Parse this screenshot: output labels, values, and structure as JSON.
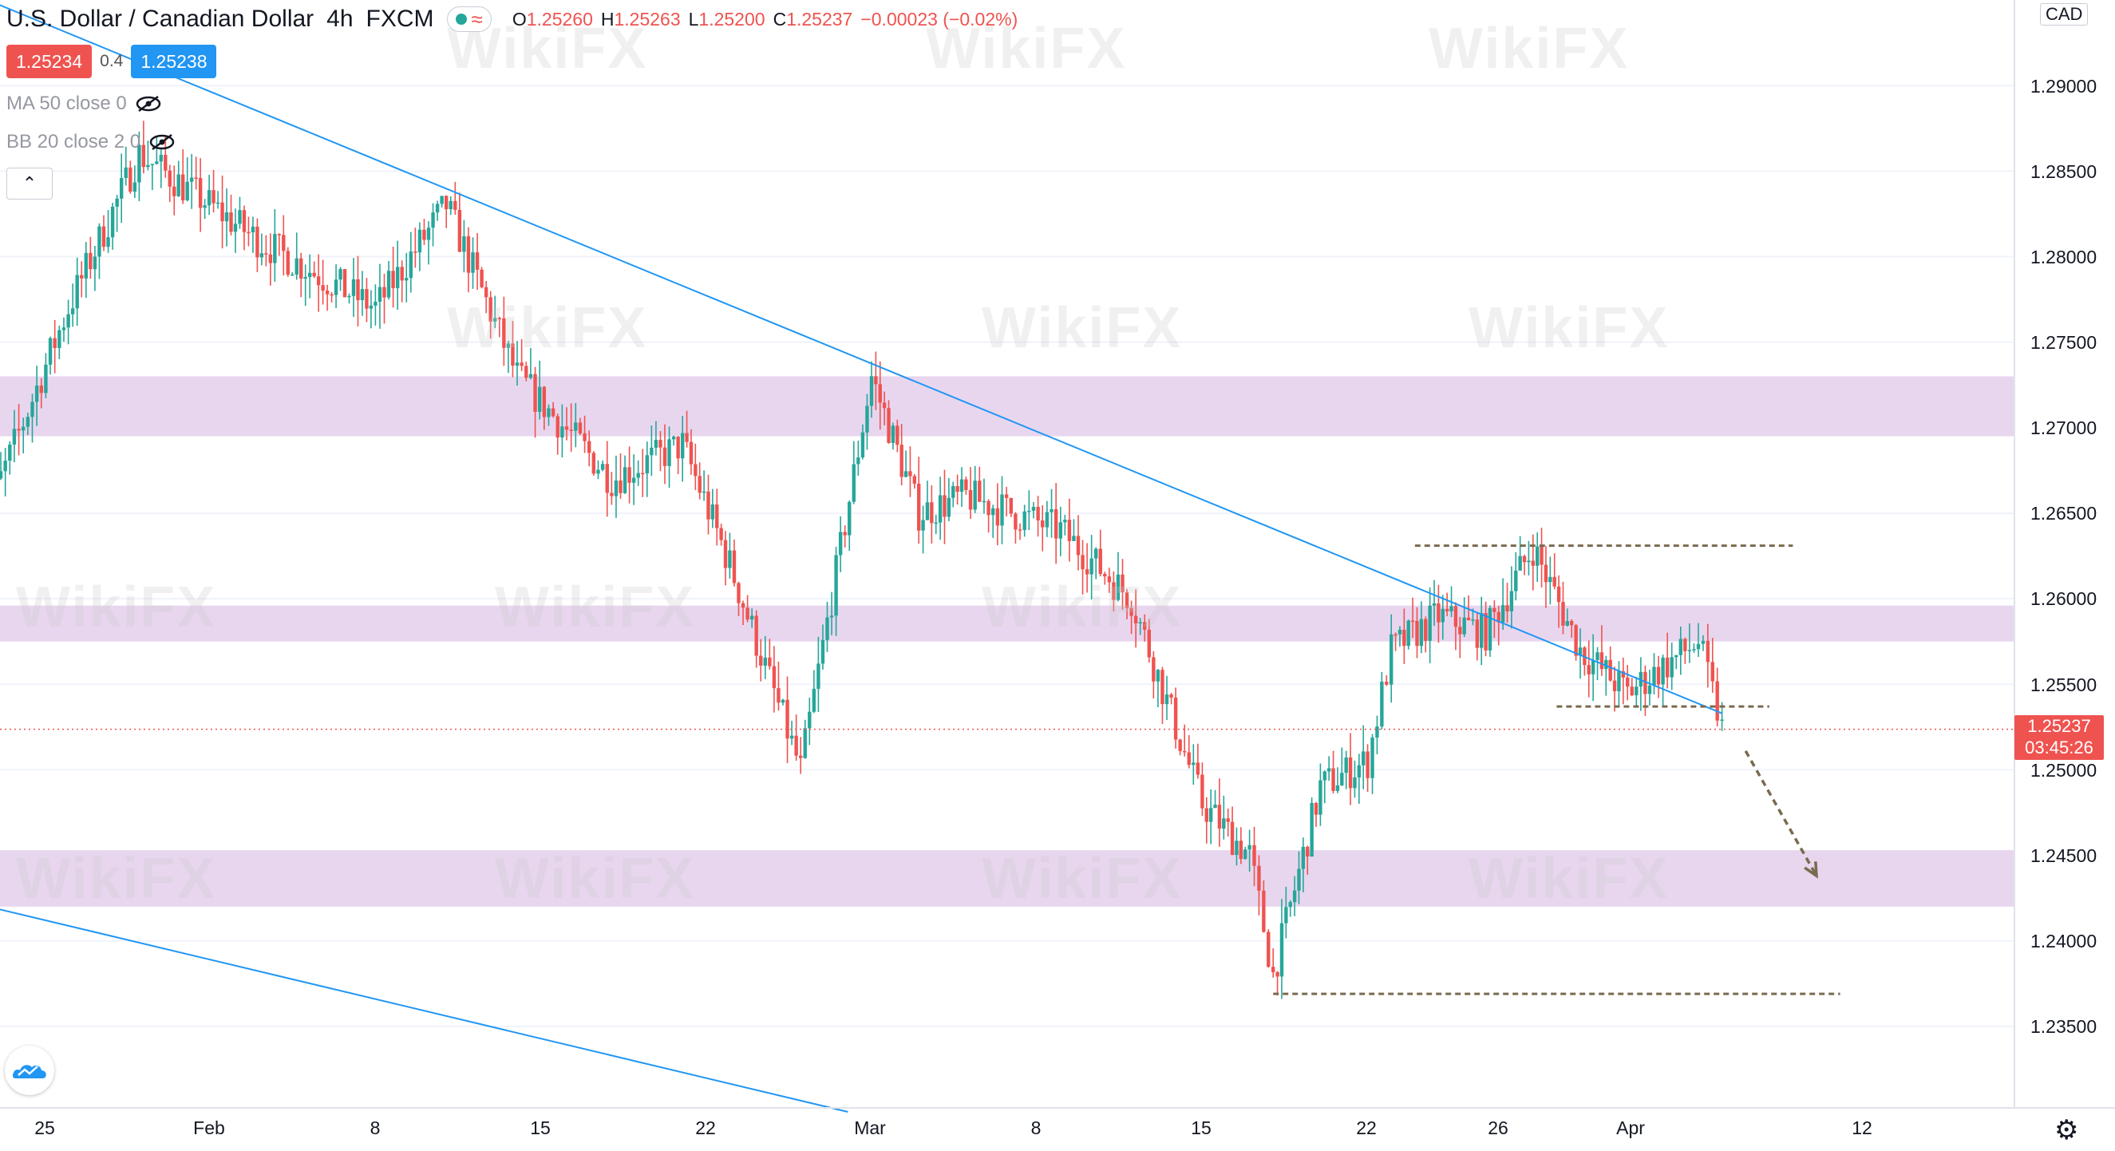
{
  "header": {
    "symbol_title": "U.S. Dollar / Canadian Dollar",
    "interval": "4h",
    "exchange": "FXCM",
    "status_icon": "market-open-dot",
    "ohlc": {
      "o_label": "O",
      "o": "1.25260",
      "h_label": "H",
      "h": "1.25263",
      "l_label": "L",
      "l": "1.25200",
      "c_label": "C",
      "c": "1.25237",
      "change": "−0.00023 (−0.02%)"
    }
  },
  "trade": {
    "sell_price": "1.25234",
    "spread": "0.4",
    "buy_price": "1.25238"
  },
  "indicators": [
    {
      "label": "MA 50 close 0"
    },
    {
      "label": "BB 20 close 2 0"
    }
  ],
  "price_axis": {
    "currency": "CAD",
    "ticks": [
      "1.29000",
      "1.28500",
      "1.28000",
      "1.27500",
      "1.27000",
      "1.26500",
      "1.26000",
      "1.25500",
      "1.25000",
      "1.24500",
      "1.24000",
      "1.23500"
    ],
    "current_price": "1.25237",
    "countdown": "03:45:26"
  },
  "time_axis": {
    "ticks": [
      "25",
      "Feb",
      "8",
      "15",
      "22",
      "Mar",
      "8",
      "15",
      "22",
      "26",
      "Apr",
      "12"
    ]
  },
  "watermark": "WikiFX",
  "colors": {
    "up": "#26a69a",
    "down": "#ef5350",
    "zone": "#e7d4ee",
    "trendline": "#2196f3",
    "dashed": "#7a6a4f"
  },
  "chart_data": {
    "type": "candlestick",
    "symbol": "USD/CAD",
    "ylim": [
      1.2305,
      1.295
    ],
    "zones": [
      [
        1.2695,
        1.273
      ],
      [
        1.2575,
        1.2596
      ],
      [
        1.242,
        1.2453
      ]
    ],
    "horizontal_levels": [
      {
        "y": 1.2631,
        "from": "2021-03-24",
        "to": "2021-04-09"
      },
      {
        "y": 1.2537,
        "from": "2021-03-30",
        "to": "2021-04-08"
      },
      {
        "y": 1.2369,
        "from": "2021-03-18",
        "to": "2021-04-11"
      }
    ],
    "trendlines": [
      {
        "from": [
          "2021-01-21",
          1.2959
        ],
        "to": [
          "2021-04-06",
          1.2533
        ]
      },
      {
        "from": [
          "2021-01-22",
          1.2422
        ],
        "to": [
          "2021-02-28",
          1.23
        ]
      }
    ],
    "projection_arrow": {
      "from": [
        "2021-04-07",
        1.2511
      ],
      "to": [
        "2021-04-10",
        1.2438
      ]
    },
    "anchors": [
      [
        "2021-01-22",
        1.263
      ],
      [
        "2021-01-26",
        1.277
      ],
      [
        "2021-01-29",
        1.286
      ],
      [
        "2021-02-03",
        1.281
      ],
      [
        "2021-02-08",
        1.277
      ],
      [
        "2021-02-11",
        1.283
      ],
      [
        "2021-02-14",
        1.273
      ],
      [
        "2021-02-18",
        1.267
      ],
      [
        "2021-02-21",
        1.269
      ],
      [
        "2021-02-23",
        1.262
      ],
      [
        "2021-02-26",
        1.25
      ],
      [
        "2021-03-01",
        1.273
      ],
      [
        "2021-03-03",
        1.265
      ],
      [
        "2021-03-05",
        1.266
      ],
      [
        "2021-03-09",
        1.264
      ],
      [
        "2021-03-12",
        1.26
      ],
      [
        "2021-03-15",
        1.248
      ],
      [
        "2021-03-17",
        1.245
      ],
      [
        "2021-03-18",
        1.238
      ],
      [
        "2021-03-20",
        1.249
      ],
      [
        "2021-03-22",
        1.2505
      ],
      [
        "2021-03-23",
        1.257
      ],
      [
        "2021-03-25",
        1.259
      ],
      [
        "2021-03-27",
        1.258
      ],
      [
        "2021-03-29",
        1.263
      ],
      [
        "2021-03-31",
        1.257
      ],
      [
        "2021-04-02",
        1.2545
      ],
      [
        "2021-04-05",
        1.2575
      ],
      [
        "2021-04-06",
        1.2524
      ]
    ]
  }
}
